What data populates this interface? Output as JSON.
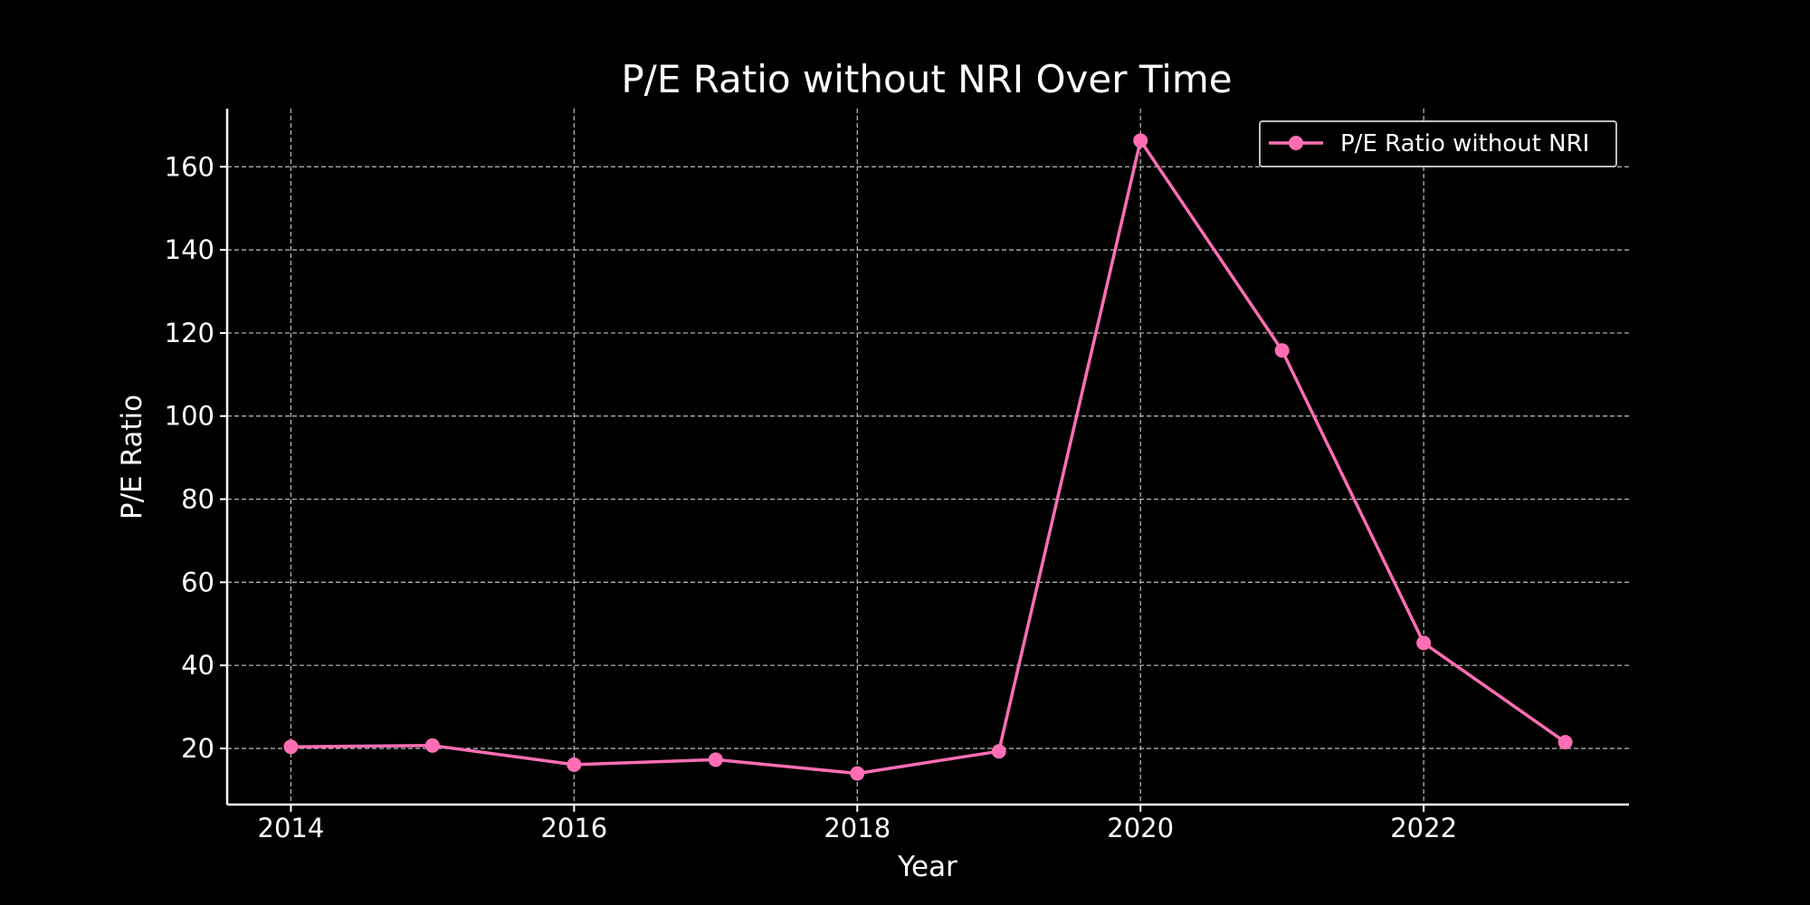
{
  "chart_data": {
    "type": "line",
    "title": "P/E Ratio without NRI Over Time",
    "xlabel": "Year",
    "ylabel": "P/E Ratio",
    "x": [
      2014,
      2015,
      2016,
      2017,
      2018,
      2019,
      2020,
      2021,
      2022,
      2023
    ],
    "series": [
      {
        "name": "P/E Ratio without NRI",
        "values": [
          20.4,
          20.7,
          16.1,
          17.3,
          14.0,
          19.3,
          166.3,
          115.8,
          45.4,
          21.5
        ],
        "color": "#ff6eb4"
      }
    ],
    "xlim": [
      2013.55,
      2023.45
    ],
    "ylim": [
      6.5,
      174
    ],
    "xticks": [
      2014,
      2016,
      2018,
      2020,
      2022
    ],
    "yticks": [
      20,
      40,
      60,
      80,
      100,
      120,
      140,
      160
    ],
    "grid": true,
    "legend_position": "top-right",
    "colors": {
      "background": "#000000",
      "text": "#ffffff",
      "axis": "#ffffff",
      "grid": "#bfbfbf"
    }
  }
}
